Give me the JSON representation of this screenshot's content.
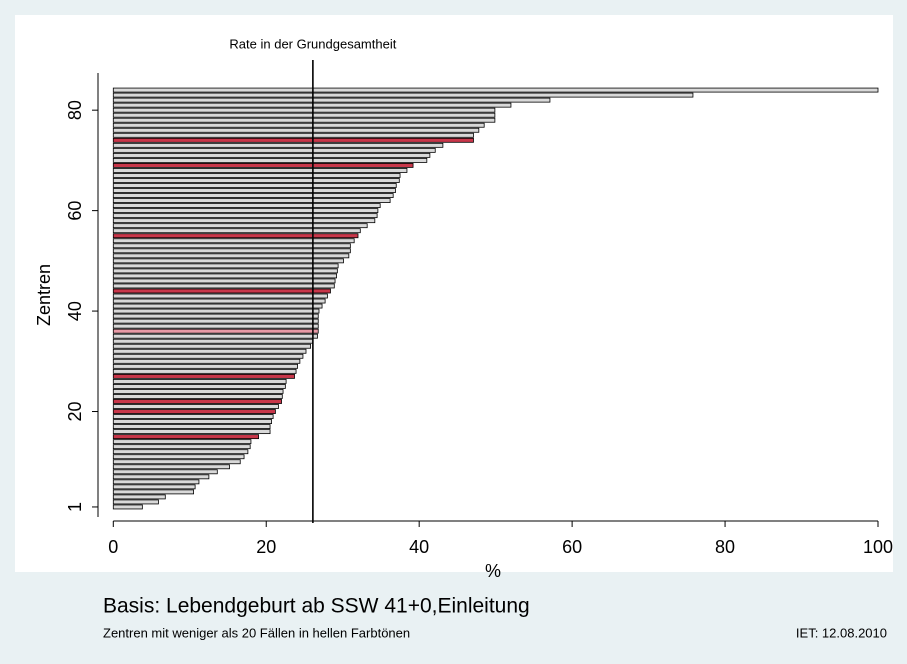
{
  "chart_data": {
    "type": "barh",
    "x_label": "%",
    "y_label": "Zentren",
    "footnote_main": "Basis: Lebendgeburt ab SSW 41+0,Einleitung",
    "footnote_left": "Zentren mit weniger als 20 Fällen in hellen Farbtönen",
    "footnote_right": "IET: 12.08.2010",
    "ref_line": {
      "value": 26.1,
      "label": "Rate in der Grundgesamtheit"
    },
    "y": [
      1,
      2,
      3,
      4,
      5,
      6,
      7,
      8,
      9,
      10,
      11,
      12,
      13,
      14,
      15,
      16,
      17,
      18,
      19,
      20,
      21,
      22,
      23,
      24,
      25,
      26,
      27,
      28,
      29,
      30,
      31,
      32,
      33,
      34,
      35,
      36,
      37,
      38,
      39,
      40,
      41,
      42,
      43,
      44,
      45,
      46,
      47,
      48,
      49,
      50,
      51,
      52,
      53,
      54,
      55,
      56,
      57,
      58,
      59,
      60,
      61,
      62,
      63,
      64,
      65,
      66,
      67,
      68,
      69,
      70,
      71,
      72,
      73,
      74,
      75,
      76,
      77,
      78,
      79,
      80,
      81,
      82,
      83,
      84
    ],
    "values": [
      3.8,
      5.9,
      6.8,
      10.5,
      10.7,
      11.2,
      12.5,
      13.6,
      15.2,
      16.6,
      17.1,
      17.6,
      17.9,
      18.0,
      19.0,
      20.5,
      20.5,
      20.7,
      20.9,
      21.2,
      21.6,
      22.0,
      22.1,
      22.2,
      22.5,
      22.6,
      23.7,
      23.9,
      24.1,
      24.4,
      24.8,
      25.2,
      25.8,
      26.1,
      26.7,
      26.8,
      26.8,
      26.8,
      26.8,
      26.9,
      27.3,
      27.7,
      28.0,
      28.4,
      28.9,
      29.0,
      29.2,
      29.3,
      29.4,
      30.1,
      30.8,
      31.0,
      31.0,
      31.5,
      32.0,
      32.3,
      33.2,
      34.2,
      34.5,
      34.6,
      34.9,
      36.2,
      36.6,
      36.9,
      37.0,
      37.4,
      37.5,
      38.4,
      39.2,
      41.0,
      41.4,
      42.1,
      43.1,
      47.1,
      47.1,
      47.8,
      48.5,
      49.9,
      49.9,
      49.9,
      52.0,
      57.1,
      75.8,
      100
    ],
    "bar_colors": [
      "#d9d9d9",
      "#d9d9d9",
      "#d9d9d9",
      "#d9d9d9",
      "#d9d9d9",
      "#d9d9d9",
      "#d9d9d9",
      "#d9d9d9",
      "#d9d9d9",
      "#d9d9d9",
      "#d9d9d9",
      "#d9d9d9",
      "#d9d9d9",
      "#d9d9d9",
      "#c8374a",
      "#d9d9d9",
      "#d9d9d9",
      "#d9d9d9",
      "#d9d9d9",
      "#c8374a",
      "#d9d9d9",
      "#c8374a",
      "#d9d9d9",
      "#d9d9d9",
      "#d9d9d9",
      "#d9d9d9",
      "#c8374a",
      "#d9d9d9",
      "#d9d9d9",
      "#d9d9d9",
      "#d9d9d9",
      "#d9d9d9",
      "#d9d9d9",
      "#d9d9d9",
      "#d9d9d9",
      "#e89aa6",
      "#d9d9d9",
      "#d9d9d9",
      "#d9d9d9",
      "#d9d9d9",
      "#d9d9d9",
      "#d9d9d9",
      "#d9d9d9",
      "#c8374a",
      "#d9d9d9",
      "#d9d9d9",
      "#d9d9d9",
      "#d9d9d9",
      "#d9d9d9",
      "#d9d9d9",
      "#d9d9d9",
      "#d9d9d9",
      "#d9d9d9",
      "#d9d9d9",
      "#c8374a",
      "#d9d9d9",
      "#d9d9d9",
      "#d9d9d9",
      "#d9d9d9",
      "#d9d9d9",
      "#d9d9d9",
      "#d9d9d9",
      "#d9d9d9",
      "#d9d9d9",
      "#d9d9d9",
      "#d9d9d9",
      "#d9d9d9",
      "#d9d9d9",
      "#c8374a",
      "#d9d9d9",
      "#d9d9d9",
      "#d9d9d9",
      "#d9d9d9",
      "#c8374a",
      "#d9d9d9",
      "#d9d9d9",
      "#d9d9d9",
      "#d9d9d9",
      "#d9d9d9",
      "#d9d9d9",
      "#d9d9d9",
      "#d9d9d9",
      "#d9d9d9",
      "#d9d9d9"
    ],
    "xlim": [
      -2,
      100
    ],
    "xticks": [
      0,
      20,
      40,
      60,
      80,
      100
    ],
    "ylim": [
      -1,
      87.4
    ],
    "yticks": [
      1,
      20,
      40,
      60,
      80
    ]
  }
}
